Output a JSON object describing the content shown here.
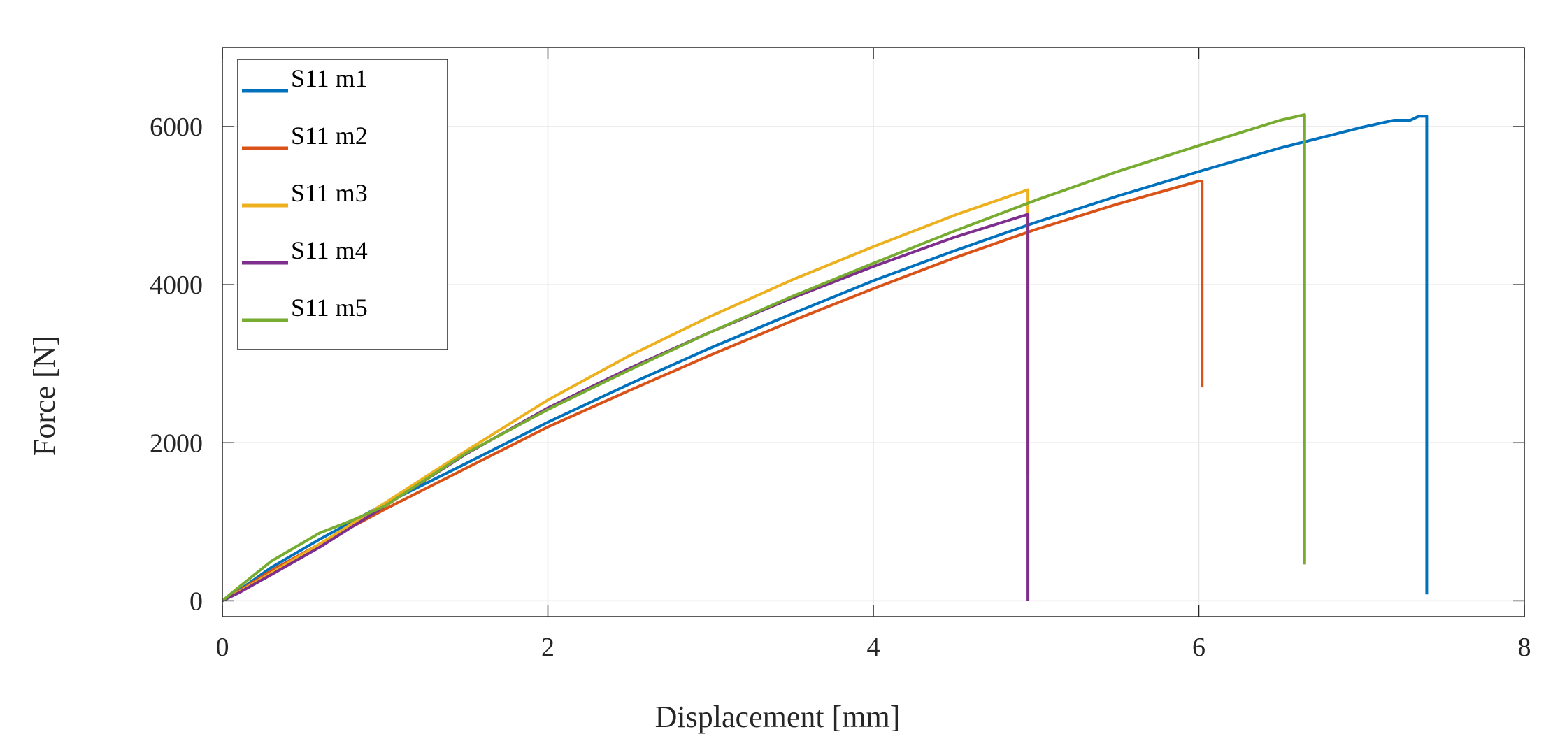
{
  "chart_data": {
    "type": "line",
    "xlabel": "Displacement [mm]",
    "ylabel": "Force [N]",
    "xlim": [
      0,
      8
    ],
    "ylim": [
      -200,
      7000
    ],
    "xticks": [
      0,
      2,
      4,
      6,
      8
    ],
    "yticks": [
      0,
      2000,
      4000,
      6000
    ],
    "xtick_labels": [
      "0",
      "2",
      "4",
      "6",
      "8"
    ],
    "ytick_labels": [
      "0",
      "2000",
      "4000",
      "6000"
    ],
    "grid": true,
    "legend_position": "top-left",
    "series": [
      {
        "name": "S11 m1",
        "color": "#0072BD",
        "points": [
          [
            0,
            0
          ],
          [
            0.1,
            130
          ],
          [
            0.3,
            420
          ],
          [
            0.6,
            780
          ],
          [
            1,
            1230
          ],
          [
            1.5,
            1740
          ],
          [
            2,
            2260
          ],
          [
            2.5,
            2740
          ],
          [
            3,
            3200
          ],
          [
            3.5,
            3630
          ],
          [
            4,
            4050
          ],
          [
            4.5,
            4430
          ],
          [
            5,
            4790
          ],
          [
            5.5,
            5120
          ],
          [
            6,
            5430
          ],
          [
            6.5,
            5730
          ],
          [
            7,
            5990
          ],
          [
            7.2,
            6080
          ],
          [
            7.3,
            6080
          ],
          [
            7.35,
            6130
          ],
          [
            7.4,
            6130
          ],
          [
            7.4,
            5000
          ],
          [
            7.4,
            1700
          ],
          [
            7.4,
            80
          ]
        ]
      },
      {
        "name": "S11 m2",
        "color": "#D95319",
        "points": [
          [
            0,
            0
          ],
          [
            0.1,
            120
          ],
          [
            0.3,
            380
          ],
          [
            0.6,
            720
          ],
          [
            1,
            1160
          ],
          [
            1.5,
            1680
          ],
          [
            2,
            2200
          ],
          [
            2.5,
            2660
          ],
          [
            3,
            3110
          ],
          [
            3.5,
            3540
          ],
          [
            4,
            3950
          ],
          [
            4.5,
            4340
          ],
          [
            5,
            4700
          ],
          [
            5.5,
            5020
          ],
          [
            6,
            5310
          ],
          [
            6.02,
            5310
          ],
          [
            6.02,
            4000
          ],
          [
            6.02,
            2700
          ]
        ]
      },
      {
        "name": "S11 m3",
        "color": "#EDB120",
        "points": [
          [
            0,
            0
          ],
          [
            0.1,
            110
          ],
          [
            0.3,
            350
          ],
          [
            0.6,
            720
          ],
          [
            1,
            1240
          ],
          [
            1.5,
            1900
          ],
          [
            2,
            2540
          ],
          [
            2.5,
            3100
          ],
          [
            3,
            3600
          ],
          [
            3.5,
            4060
          ],
          [
            4,
            4480
          ],
          [
            4.5,
            4880
          ],
          [
            4.95,
            5200
          ],
          [
            4.95,
            3200
          ],
          [
            4.95,
            1600
          ]
        ]
      },
      {
        "name": "S11 m4",
        "color": "#7E2F8E",
        "points": [
          [
            0,
            0
          ],
          [
            0.1,
            100
          ],
          [
            0.3,
            330
          ],
          [
            0.6,
            680
          ],
          [
            1,
            1200
          ],
          [
            1.5,
            1860
          ],
          [
            2,
            2440
          ],
          [
            2.5,
            2940
          ],
          [
            3,
            3400
          ],
          [
            3.5,
            3830
          ],
          [
            4,
            4230
          ],
          [
            4.5,
            4600
          ],
          [
            4.95,
            4890
          ],
          [
            4.95,
            4000
          ],
          [
            4.95,
            1500
          ],
          [
            4.95,
            0
          ]
        ]
      },
      {
        "name": "S11 m5",
        "color": "#77AC30",
        "points": [
          [
            0,
            0
          ],
          [
            0.1,
            170
          ],
          [
            0.3,
            500
          ],
          [
            0.6,
            860
          ],
          [
            0.8,
            1020
          ],
          [
            1,
            1200
          ],
          [
            1.5,
            1870
          ],
          [
            2,
            2420
          ],
          [
            2.5,
            2920
          ],
          [
            3,
            3400
          ],
          [
            3.5,
            3850
          ],
          [
            4,
            4270
          ],
          [
            4.5,
            4680
          ],
          [
            5,
            5070
          ],
          [
            5.5,
            5430
          ],
          [
            6,
            5760
          ],
          [
            6.5,
            6080
          ],
          [
            6.65,
            6150
          ],
          [
            6.65,
            3500
          ],
          [
            6.65,
            1000
          ],
          [
            6.65,
            460
          ]
        ]
      }
    ]
  }
}
